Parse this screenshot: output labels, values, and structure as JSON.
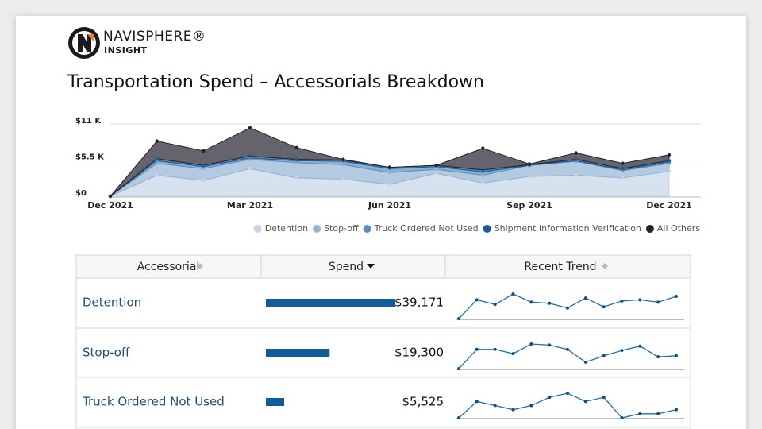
{
  "header": {
    "logo_brand": "NAVISPHERE®",
    "logo_sub": "INSIGHT",
    "title": "Transportation Spend – Accessorials Breakdown"
  },
  "chart_data": {
    "type": "area",
    "stacked": true,
    "categories": [
      "Dec 2021",
      null,
      null,
      "Mar 2021",
      null,
      null,
      "Jun 2021",
      null,
      null,
      "Sep 2021",
      null,
      null,
      "Dec 2021"
    ],
    "series": [
      {
        "name": "Detention",
        "color": "#c5d5e6",
        "values": [
          0,
          3200,
          2400,
          4200,
          2800,
          2600,
          1800,
          3500,
          2000,
          3000,
          3200,
          2800,
          3800
        ]
      },
      {
        "name": "Stop-off",
        "color": "#94b4d4",
        "values": [
          0,
          1800,
          1800,
          1400,
          2300,
          2200,
          1800,
          600,
          1200,
          1700,
          2100,
          1100,
          1200
        ]
      },
      {
        "name": "Truck Ordered Not Used",
        "color": "#5b8ebf",
        "values": [
          0,
          400,
          300,
          200,
          300,
          500,
          600,
          400,
          500,
          0,
          100,
          100,
          200
        ]
      },
      {
        "name": "Shipment Information Verification",
        "color": "#1d5a94",
        "values": [
          0,
          300,
          200,
          300,
          200,
          200,
          200,
          200,
          300,
          100,
          200,
          200,
          200
        ]
      },
      {
        "name": "All Others",
        "color": "#24212e",
        "values": [
          0,
          2700,
          2200,
          4300,
          1800,
          100,
          0,
          0,
          3300,
          100,
          1000,
          800,
          900
        ]
      }
    ],
    "ylim": [
      0,
      11000
    ],
    "yticks": [
      {
        "value": 0,
        "label": "$0"
      },
      {
        "value": 5500,
        "label": "$5.5 K"
      },
      {
        "value": 11000,
        "label": "$11 K"
      }
    ],
    "grid": true,
    "legend": "bottom-right"
  },
  "table": {
    "columns": [
      "Accessorial",
      "Spend",
      "Recent Trend"
    ],
    "rows": [
      {
        "name": "Detention",
        "spend": 39171,
        "spend_label": "$39,171"
      },
      {
        "name": "Stop-off",
        "spend": 19300,
        "spend_label": "$19,300"
      },
      {
        "name": "Truck Ordered Not Used",
        "spend": 5525,
        "spend_label": "$5,525"
      }
    ]
  }
}
